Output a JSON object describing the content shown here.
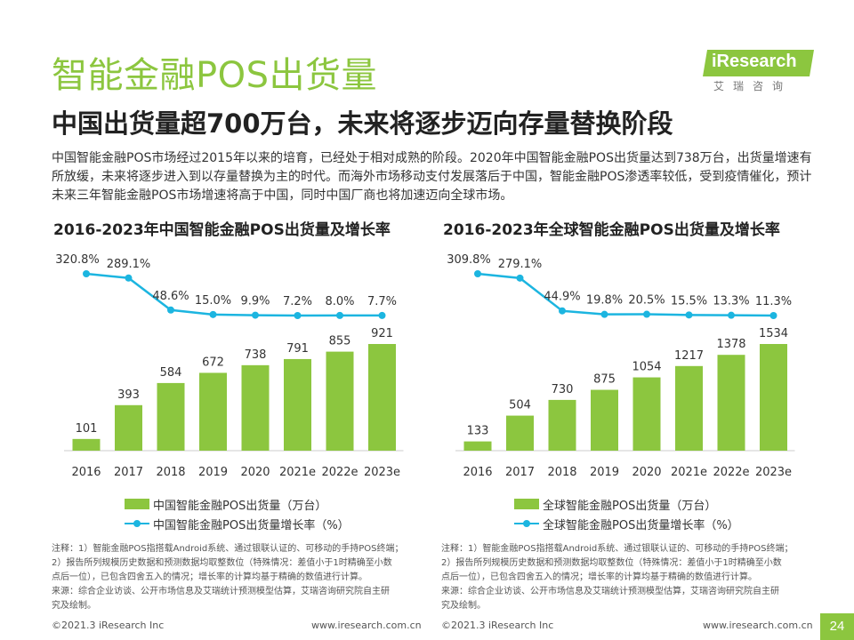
{
  "header": {
    "title": "智能金融POS出货量",
    "subtitle": "中国出货量超700万台，未来将逐步迈向存量替换阶段",
    "logo_text": "iResearch",
    "logo_sub": "艾瑞咨询"
  },
  "intro": "中国智能金融POS市场经过2015年以来的培育，已经处于相对成熟的阶段。2020年中国智能金融POS出货量达到738万台，出货量增速有所放缓，未来将逐步进入到以存量替换为主的时代。而海外市场移动支付发展落后于中国，智能金融POS渗透率较低，受到疫情催化，预计未来三年智能金融POS市场增速将高于中国，同时中国厂商也将加速迈向全球市场。",
  "colors": {
    "bar": "#8CC63F",
    "line": "#1CB5E0",
    "brand": "#8CC63F"
  },
  "chart_data": [
    {
      "type": "bar",
      "title": "2016-2023年中国智能金融POS出货量及增长率",
      "categories": [
        "2016",
        "2017",
        "2018",
        "2019",
        "2020",
        "2021e",
        "2022e",
        "2023e"
      ],
      "series": [
        {
          "name": "中国智能金融POS出货量（万台）",
          "type": "bar",
          "values": [
            101,
            393,
            584,
            672,
            738,
            791,
            855,
            921
          ]
        },
        {
          "name": "中国智能金融POS出货量增长率（%）",
          "type": "line",
          "values": [
            320.8,
            289.1,
            48.6,
            15.0,
            9.9,
            7.2,
            8.0,
            7.7
          ],
          "labels": [
            "320.8%",
            "289.1%",
            "48.6%",
            "15.0%",
            "9.9%",
            "7.2%",
            "8.0%",
            "7.7%"
          ]
        }
      ]
    },
    {
      "type": "bar",
      "title": "2016-2023年全球智能金融POS出货量及增长率",
      "categories": [
        "2016",
        "2017",
        "2018",
        "2019",
        "2020",
        "2021e",
        "2022e",
        "2023e"
      ],
      "series": [
        {
          "name": "全球智能金融POS出货量（万台）",
          "type": "bar",
          "values": [
            133,
            504,
            730,
            875,
            1054,
            1217,
            1378,
            1534
          ]
        },
        {
          "name": "全球智能金融POS出货量增长率（%）",
          "type": "line",
          "values": [
            309.8,
            279.1,
            44.9,
            19.8,
            20.5,
            15.5,
            13.3,
            11.3
          ],
          "labels": [
            "309.8%",
            "279.1%",
            "44.9%",
            "19.8%",
            "20.5%",
            "15.5%",
            "13.3%",
            "11.3%"
          ]
        }
      ]
    }
  ],
  "notes": {
    "left": [
      "注释：1）智能金融POS指搭载Android系统、通过银联认证的、可移动的手持POS终端；",
      "2）报告所列规模历史数据和预测数据均取整数位（特殊情况：差值小于1时精确至小数",
      "点后一位），已包含四舍五入的情况；增长率的计算均基于精确的数值进行计算。",
      "来源：综合企业访谈、公开市场信息及艾瑞统计预测模型估算，艾瑞咨询研究院自主研",
      "究及绘制。"
    ],
    "right": [
      "注释：1）智能金融POS指搭载Android系统、通过银联认证的、可移动的手持POS终端；",
      "2）报告所列规模历史数据和预测数据均取整数位（特殊情况：差值小于1时精确至小数",
      "点后一位），已包含四舍五入的情况；增长率的计算均基于精确的数值进行计算。",
      "来源：综合企业访谈、公开市场信息及艾瑞统计预测模型估算，艾瑞咨询研究院自主研",
      "究及绘制。"
    ]
  },
  "footer": {
    "left_copyright": "©2021.3 iResearch Inc",
    "left_url": "www.iresearch.com.cn",
    "right_copyright": "©2021.3 iResearch Inc",
    "right_url": "www.iresearch.com.cn",
    "page_number": "24"
  }
}
